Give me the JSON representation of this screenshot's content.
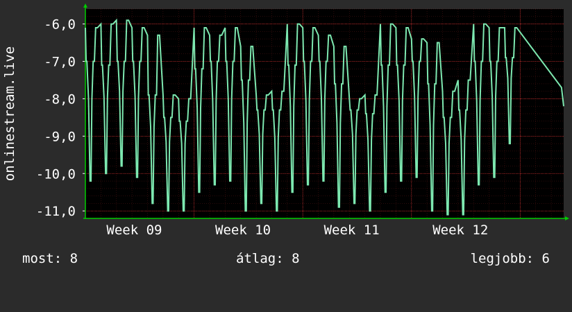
{
  "chart_data": {
    "type": "line",
    "ylabel": "onlinestream.live",
    "ylim": [
      -11.2,
      -5.6
    ],
    "yticks": [
      -6,
      -7,
      -8,
      -9,
      -10,
      -11
    ],
    "ytick_labels": [
      "-6,0",
      "-7,0",
      "-8,0",
      "-9,0",
      "-10,0",
      "-11,0"
    ],
    "xlim": [
      0,
      4.4
    ],
    "xticks": [
      0.45,
      1.45,
      2.45,
      3.45
    ],
    "xtick_labels": [
      "Week 09",
      "Week 10",
      "Week 11",
      "Week 12"
    ],
    "grid": true,
    "colors": {
      "background": "#2b2b2b",
      "plot": "#000000",
      "line": "#7de8b0",
      "grid": "#ff3b3b",
      "axis": "#00cc00"
    },
    "series": [
      {
        "daily_cycles": [
          {
            "high": -6.1,
            "plateau": -7.0,
            "low": -10.2
          },
          {
            "high": -6.0,
            "plateau": -7.1,
            "low": -10.0
          },
          {
            "high": -5.9,
            "plateau": -7.0,
            "low": -9.8
          },
          {
            "high": -6.1,
            "plateau": -7.0,
            "low": -10.1
          },
          {
            "high": -6.3,
            "plateau": -7.9,
            "low": -10.8
          },
          {
            "high": -7.9,
            "plateau": -8.5,
            "low": -11.0
          },
          {
            "high": -8.0,
            "plateau": -8.6,
            "low": -11.0
          },
          {
            "high": -6.1,
            "plateau": -7.2,
            "low": -10.5
          },
          {
            "high": -6.3,
            "plateau": -7.0,
            "low": -10.3
          },
          {
            "high": -6.1,
            "plateau": -7.0,
            "low": -10.2
          },
          {
            "high": -6.6,
            "plateau": -7.5,
            "low": -11.0
          },
          {
            "high": -7.9,
            "plateau": -8.3,
            "low": -10.8
          },
          {
            "high": -7.8,
            "plateau": -8.3,
            "low": -11.0
          },
          {
            "high": -6.0,
            "plateau": -7.1,
            "low": -10.5
          },
          {
            "high": -6.1,
            "plateau": -7.0,
            "low": -10.3
          },
          {
            "high": -6.3,
            "plateau": -7.0,
            "low": -10.2
          },
          {
            "high": -6.6,
            "plateau": -7.6,
            "low": -10.9
          },
          {
            "high": -8.0,
            "plateau": -8.3,
            "low": -10.8
          },
          {
            "high": -7.9,
            "plateau": -8.4,
            "low": -11.0
          },
          {
            "high": -6.0,
            "plateau": -7.1,
            "low": -10.5
          },
          {
            "high": -6.1,
            "plateau": -7.1,
            "low": -10.2
          },
          {
            "high": -6.4,
            "plateau": -7.0,
            "low": -10.1
          },
          {
            "high": -6.5,
            "plateau": -7.6,
            "low": -11.0
          },
          {
            "high": -7.8,
            "plateau": -8.5,
            "low": -11.1
          },
          {
            "high": -7.5,
            "plateau": -8.3,
            "low": -11.1
          },
          {
            "high": -6.0,
            "plateau": -7.0,
            "low": -10.3
          },
          {
            "high": -6.1,
            "plateau": -7.0,
            "low": -10.1
          },
          {
            "high": -6.1,
            "plateau": -6.9,
            "low": -9.2
          }
        ]
      }
    ]
  },
  "stats": {
    "current": "most: 8",
    "average": "átlag: 8",
    "best": "legjobb: 6"
  }
}
